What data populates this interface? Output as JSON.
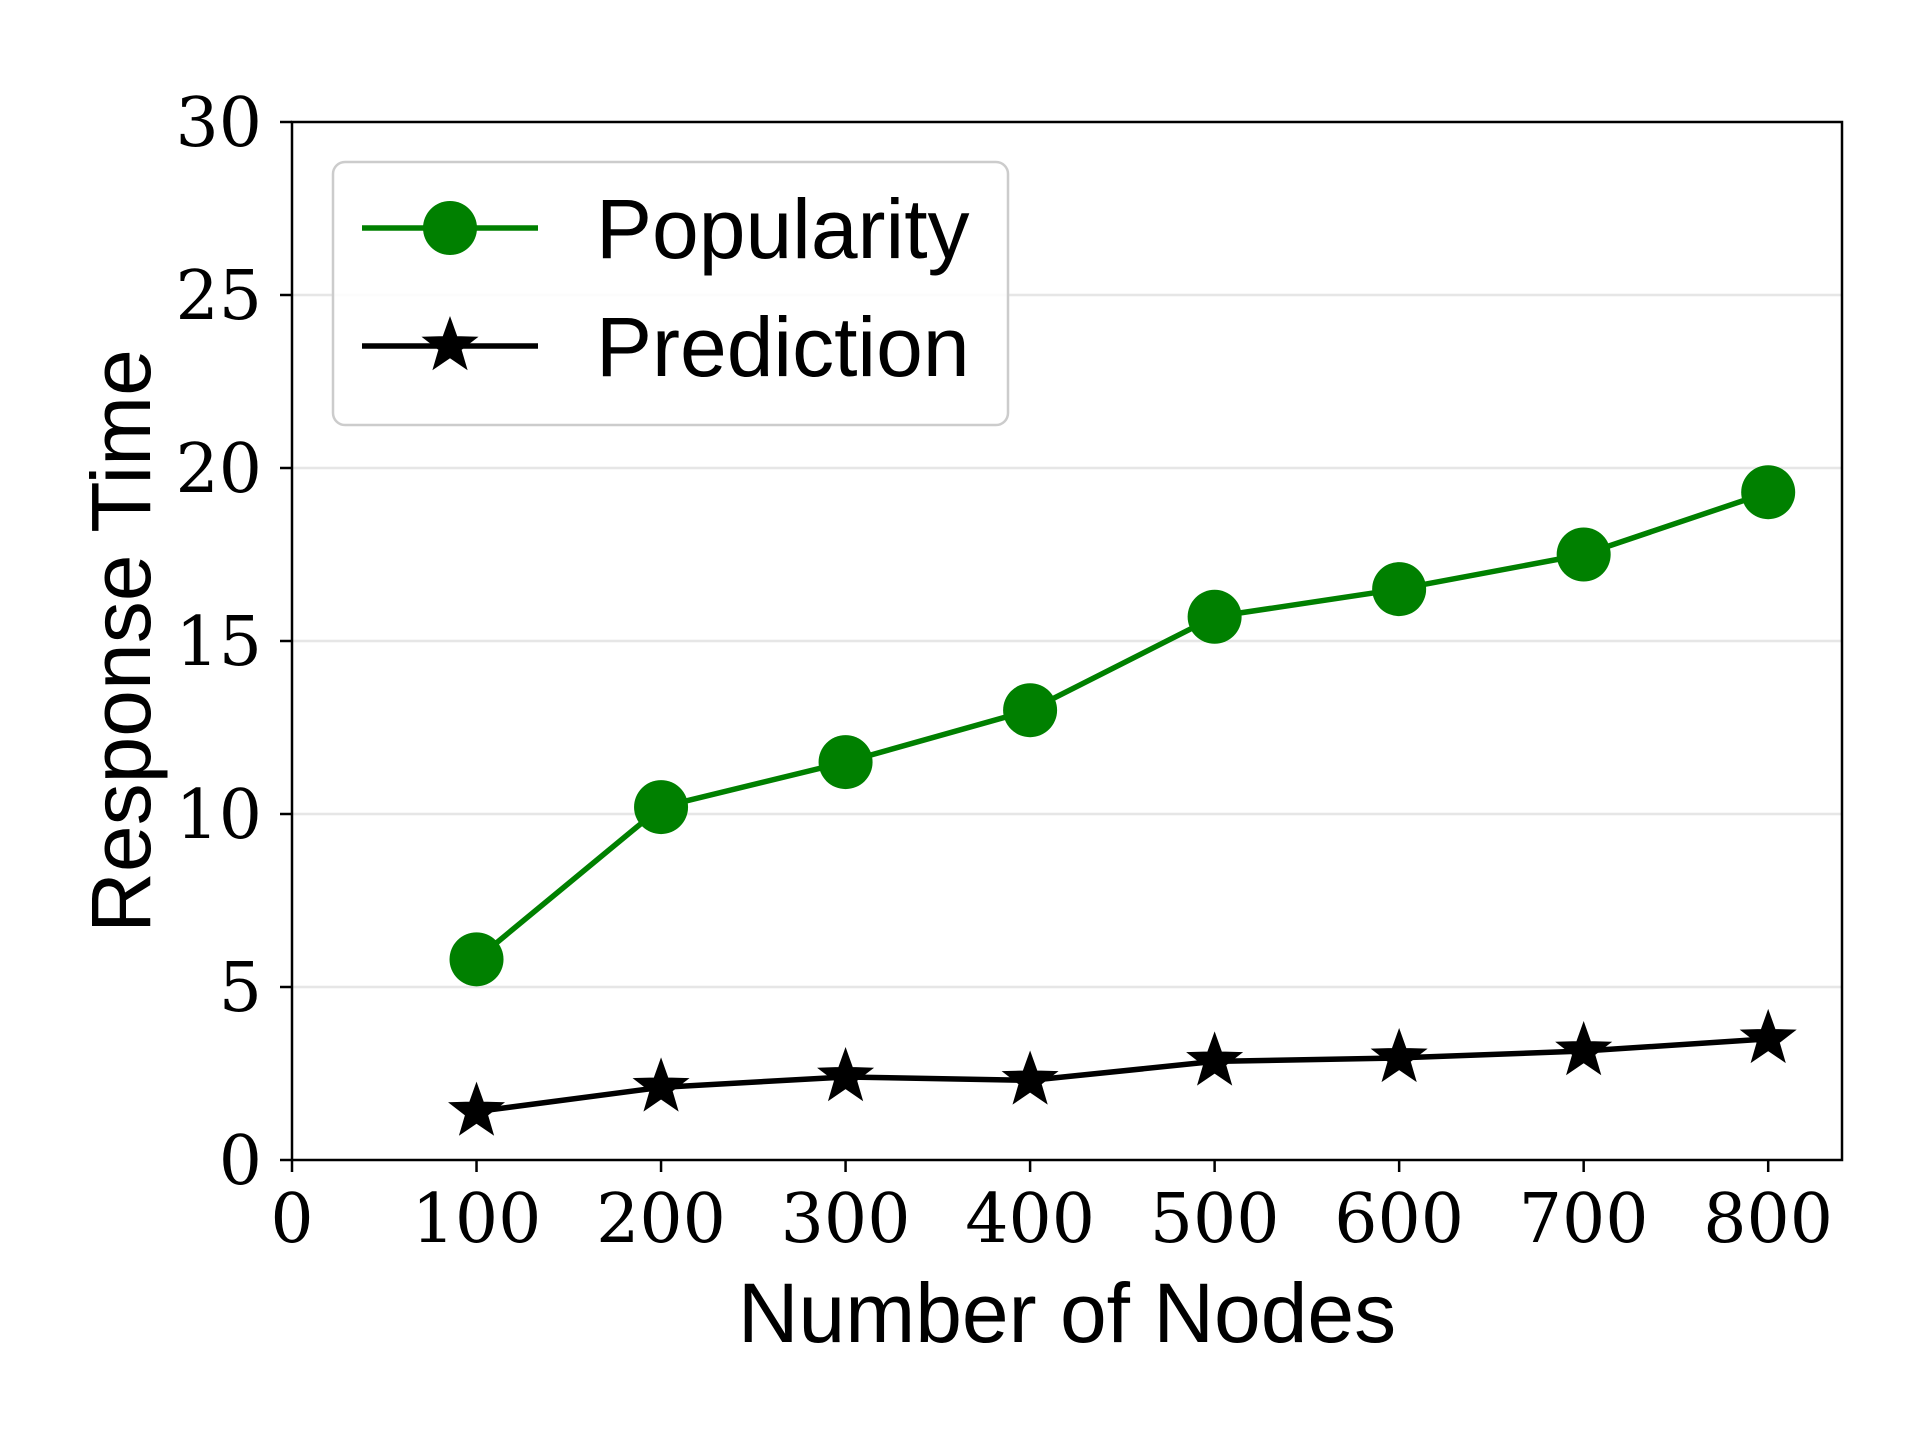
{
  "chart_data": {
    "type": "line",
    "title": "",
    "xlabel": "Number of Nodes",
    "ylabel": "Response Time",
    "xlim": [
      0,
      840
    ],
    "ylim": [
      0,
      30
    ],
    "xticks": [
      0,
      100,
      200,
      300,
      400,
      500,
      600,
      700,
      800
    ],
    "yticks": [
      0,
      5,
      10,
      15,
      20,
      25,
      30
    ],
    "grid": "horizontal",
    "legend_position": "top-left",
    "x": [
      100,
      200,
      300,
      400,
      500,
      600,
      700,
      800
    ],
    "series": [
      {
        "name": "Popularity",
        "values": [
          5.8,
          10.2,
          11.5,
          13.0,
          15.7,
          16.5,
          17.5,
          19.3
        ],
        "color": "#008000",
        "marker": "circle"
      },
      {
        "name": "Prediction",
        "values": [
          1.4,
          2.1,
          2.4,
          2.3,
          2.85,
          2.95,
          3.15,
          3.5
        ],
        "color": "#000000",
        "marker": "star"
      }
    ]
  }
}
